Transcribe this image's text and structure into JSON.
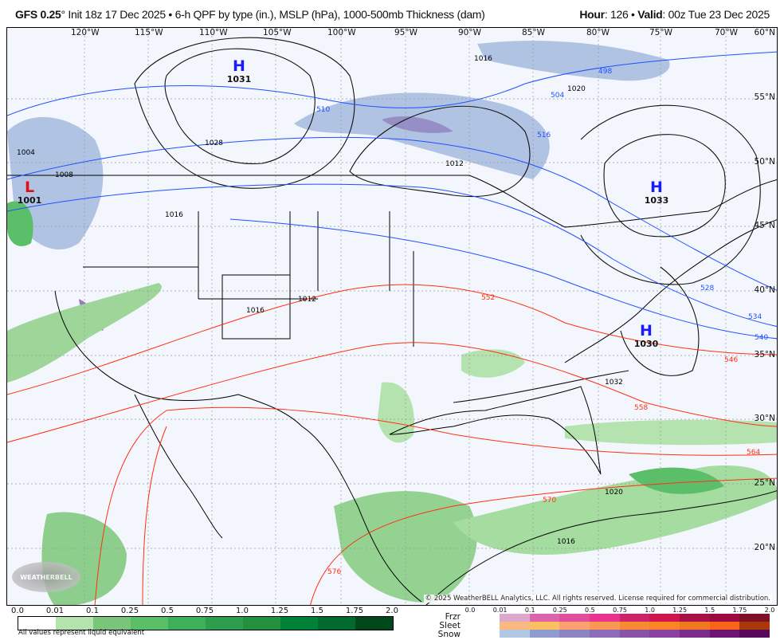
{
  "header": {
    "model": "GFS 0.25",
    "model_suffix": "° Init 18z 17 Dec 2025 • 6-h QPF by type (in.), MSLP (hPa), 1000-500mb Thickness (dam)",
    "hour_label": "Hour",
    "hour_value": ": 126 • ",
    "valid_label": "Valid",
    "valid_value": ": 00z Tue 23 Dec 2025"
  },
  "map": {
    "longitudes": [
      "120°W",
      "115°W",
      "110°W",
      "105°W",
      "100°W",
      "95°W",
      "90°W",
      "85°W",
      "80°W",
      "75°W",
      "70°W"
    ],
    "latitudes": [
      "60°N",
      "55°N",
      "50°N",
      "45°N",
      "40°N",
      "35°N",
      "30°N",
      "25°N",
      "20°N"
    ],
    "pressure_centers": [
      {
        "type": "H",
        "value": "1031",
        "color": "#1a1aff"
      },
      {
        "type": "L",
        "value": "1001",
        "color": "#e01010"
      },
      {
        "type": "H",
        "value": "1033",
        "color": "#1a1aff"
      },
      {
        "type": "H",
        "value": "1030",
        "color": "#1a1aff"
      }
    ],
    "isobar_labels": [
      "1016",
      "1020",
      "1028",
      "1012",
      "1016",
      "1012",
      "1016",
      "1032",
      "1020",
      "1016",
      "1004",
      "1008"
    ],
    "thickness_labels": [
      "552",
      "558",
      "564",
      "570",
      "576",
      "528",
      "534",
      "540",
      "546",
      "510",
      "516",
      "498",
      "504"
    ],
    "watermark": "WeatherBELL",
    "copyright": "© 2025 WeatherBELL Analytics, LLC. All rights reserved. License required for commercial distribution."
  },
  "legend": {
    "rain_ticks": [
      "0.0",
      "0.01",
      "0.1",
      "0.25",
      "0.5",
      "0.75",
      "1.0",
      "1.25",
      "1.5",
      "1.75",
      "2.0"
    ],
    "rain_colors": [
      "#ffffff",
      "#b5e3b0",
      "#79c67b",
      "#5bbf6a",
      "#3fb05a",
      "#2e9e4e",
      "#238f3f",
      "#00813a",
      "#006b2c",
      "#00471b"
    ],
    "note": "All values represent liquid equivalent",
    "type_ticks": [
      "0.0",
      "0.01",
      "0.1",
      "0.25",
      "0.5",
      "0.75",
      "1.0",
      "1.25",
      "1.5",
      "1.75",
      "2.0"
    ],
    "types": [
      {
        "label": "Frzr",
        "colors": [
          "#dca8cc",
          "#dc64ac",
          "#e0509a",
          "#e8348f",
          "#cc2468",
          "#d0144c",
          "#a81048",
          "#9c0840",
          "#801028"
        ]
      },
      {
        "label": "Sleet",
        "colors": [
          "#fbb880",
          "#fdc060",
          "#fba070",
          "#f99850",
          "#f98a30",
          "#fb8424",
          "#f27820",
          "#f86418",
          "#a83808"
        ]
      },
      {
        "label": "Snow",
        "colors": [
          "#b0c8e4",
          "#909cd0",
          "#8c84c0",
          "#8c6cb8",
          "#8854a8",
          "#8c40a0",
          "#7c2c8c",
          "#6c1474",
          "#580858"
        ]
      }
    ]
  }
}
